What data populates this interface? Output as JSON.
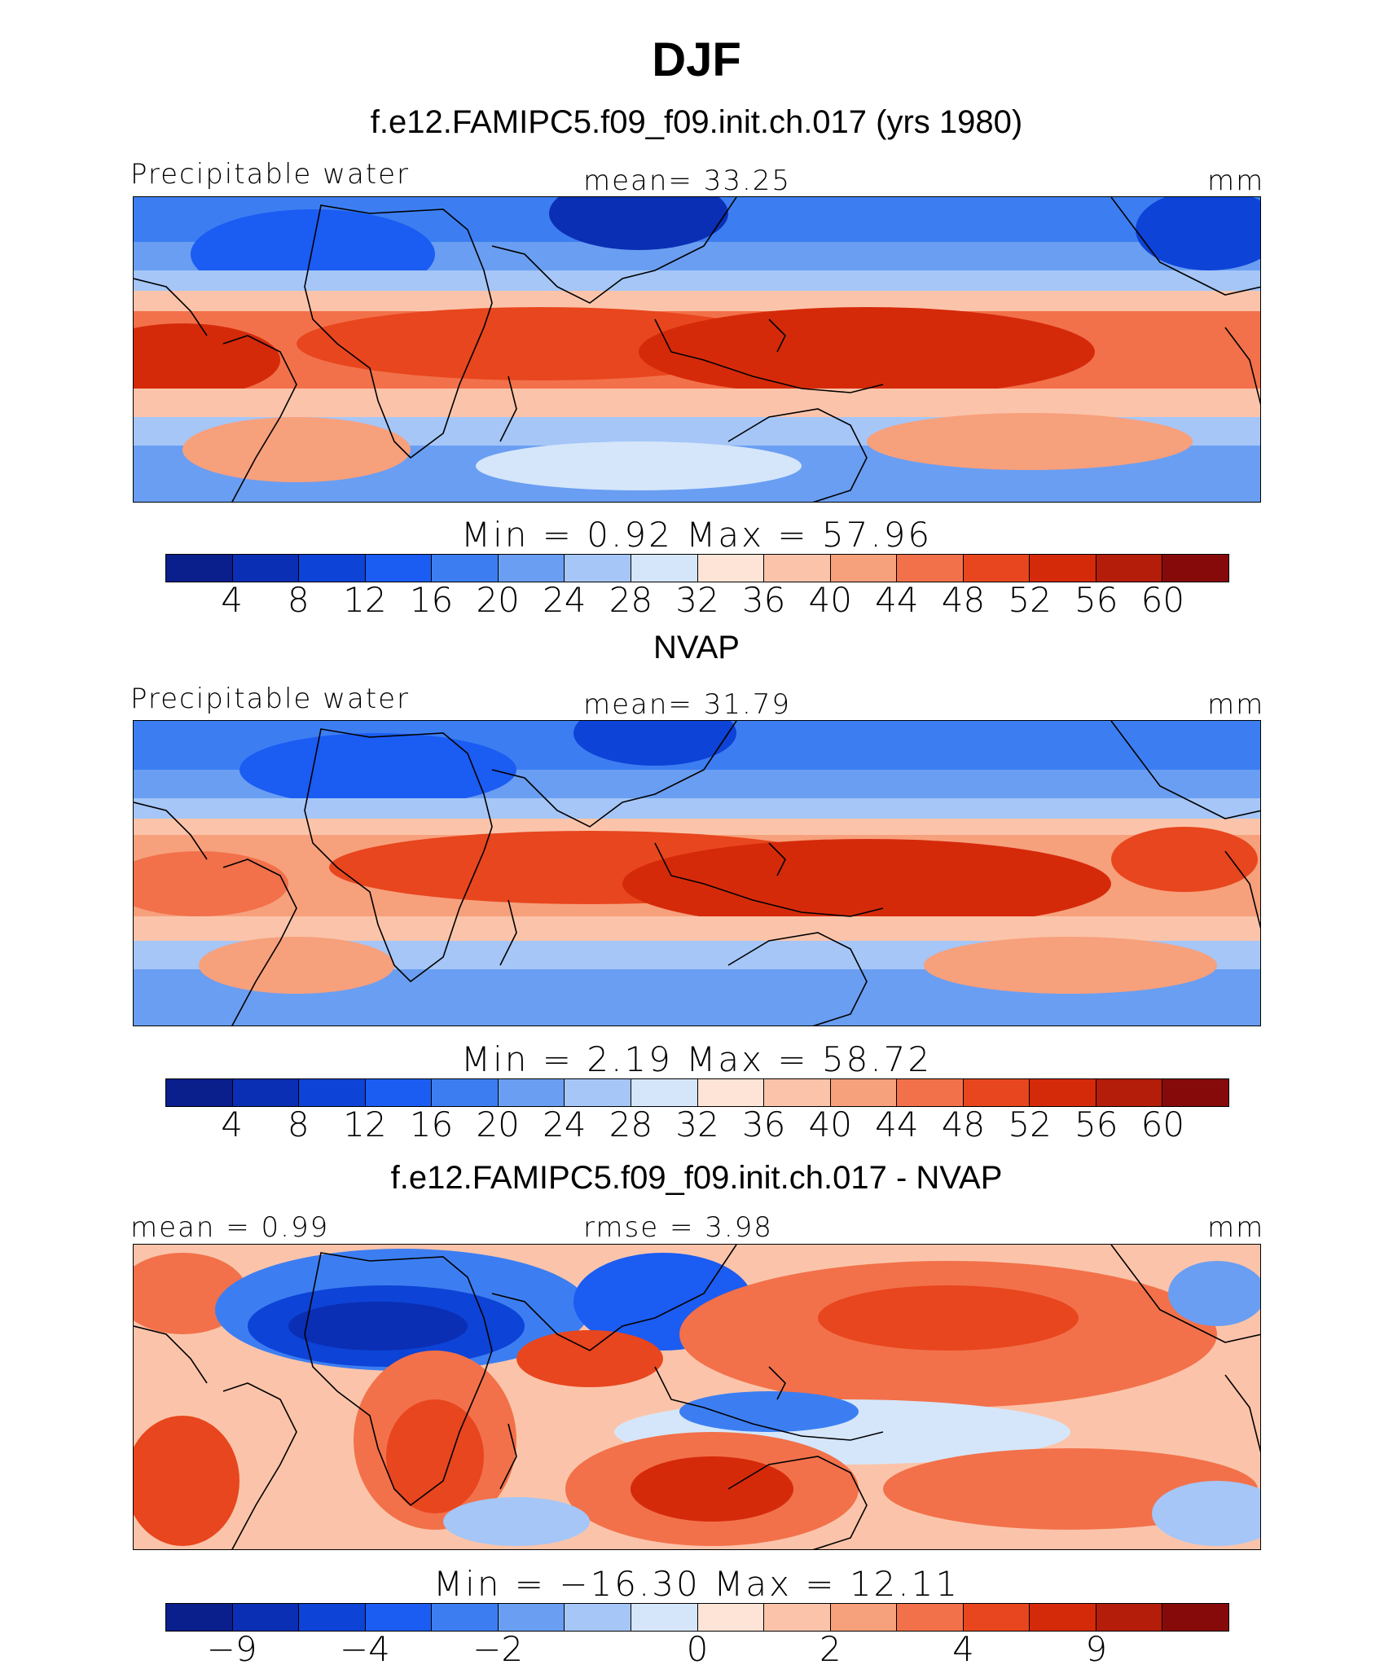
{
  "title": "DJF",
  "colorbar_colors": [
    "#0a1e8c",
    "#0a2fb4",
    "#0d43d6",
    "#1b5cf2",
    "#3c7ef2",
    "#6a9ef2",
    "#a5c6f7",
    "#d5e6fb",
    "#fde4d6",
    "#fbc4aa",
    "#f7a07c",
    "#f2714a",
    "#e8461e",
    "#d52a0a",
    "#b41d0a",
    "#870a0a"
  ],
  "panels": [
    {
      "name": "model",
      "title": "f.e12.FAMIPC5.f09_f09.init.ch.017 (yrs 1980)",
      "left_label": "Precipitable water",
      "center_label": "mean=   33.25",
      "right_label": "mm",
      "min_max": "Min  =     0.92  Max  =    57.96",
      "ticks": [
        "4",
        "8",
        "12",
        "16",
        "20",
        "24",
        "28",
        "32",
        "36",
        "40",
        "44",
        "48",
        "52",
        "56",
        "60"
      ]
    },
    {
      "name": "obs",
      "title": "NVAP",
      "left_label": "Precipitable water",
      "center_label": "mean=   31.79",
      "right_label": "mm",
      "min_max": "Min  =     2.19  Max  =    58.72",
      "ticks": [
        "4",
        "8",
        "12",
        "16",
        "20",
        "24",
        "28",
        "32",
        "36",
        "40",
        "44",
        "48",
        "52",
        "56",
        "60"
      ]
    },
    {
      "name": "diff",
      "title": "f.e12.FAMIPC5.f09_f09.init.ch.017 - NVAP",
      "left_label": "mean =     0.99",
      "center_label": "rmse =     3.98",
      "right_label": "mm",
      "min_max": "Min  =  −16.30  Max  =    12.11",
      "ticks": [
        "−9",
        "−4",
        "−2",
        "0",
        "2",
        "4",
        "9"
      ]
    }
  ]
}
